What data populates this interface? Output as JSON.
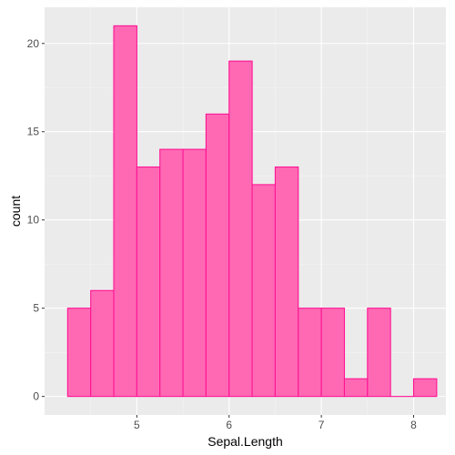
{
  "chart_data": {
    "type": "bar",
    "subtype": "histogram",
    "xlabel": "Sepal.Length",
    "ylabel": "count",
    "bin_edges": [
      4.25,
      4.5,
      4.75,
      5.0,
      5.25,
      5.5,
      5.75,
      6.0,
      6.25,
      6.5,
      6.75,
      7.0,
      7.25,
      7.5,
      7.75,
      8.0,
      8.25
    ],
    "counts": [
      5,
      6,
      21,
      13,
      14,
      14,
      16,
      19,
      12,
      13,
      5,
      5,
      1,
      5,
      0,
      1
    ],
    "xlim": [
      4.0,
      8.35
    ],
    "ylim": [
      -1.05,
      22.05
    ],
    "x_ticks": [
      5,
      6,
      7,
      8
    ],
    "y_ticks": [
      0,
      5,
      10,
      15,
      20
    ],
    "grid": true,
    "colors": {
      "bar_fill": "#ff69b4",
      "bar_outline": "#ff1493",
      "panel_background": "#ebebeb",
      "grid_major": "#ffffff",
      "grid_minor": "#f5f5f5",
      "tick_label": "#4d4d4d"
    }
  }
}
